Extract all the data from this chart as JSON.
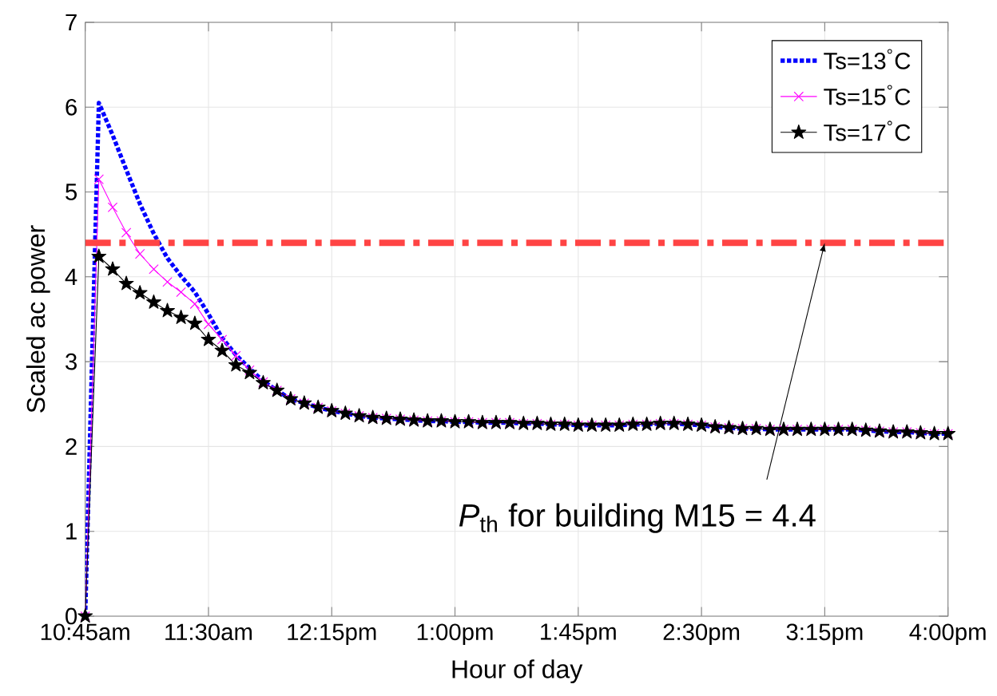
{
  "chart_data": {
    "type": "line",
    "xlabel": "Hour of day",
    "ylabel": "Scaled ac power",
    "x": [
      10.75,
      10.833,
      10.917,
      11.0,
      11.083,
      11.167,
      11.25,
      11.333,
      11.417,
      11.5,
      11.583,
      11.667,
      11.75,
      11.833,
      11.917,
      12.0,
      12.083,
      12.167,
      12.25,
      12.333,
      12.417,
      12.5,
      12.583,
      12.667,
      12.75,
      12.833,
      12.917,
      13.0,
      13.083,
      13.167,
      13.25,
      13.333,
      13.417,
      13.5,
      13.583,
      13.667,
      13.75,
      13.833,
      13.917,
      14.0,
      14.083,
      14.167,
      14.25,
      14.333,
      14.417,
      14.5,
      14.583,
      14.667,
      14.75,
      14.833,
      14.917,
      15.0,
      15.083,
      15.167,
      15.25,
      15.333,
      15.417,
      15.5,
      15.583,
      15.667,
      15.75,
      15.833,
      15.917,
      16.0
    ],
    "series": [
      {
        "name": "Ts=13$^{°}$C",
        "color": "#0000ff",
        "marker": "none",
        "line_style": "dotted",
        "values": [
          0,
          6.05,
          5.67,
          5.26,
          4.86,
          4.51,
          4.22,
          4.01,
          3.82,
          3.56,
          3.28,
          3.08,
          2.92,
          2.77,
          2.66,
          2.56,
          2.51,
          2.46,
          2.42,
          2.39,
          2.36,
          2.34,
          2.33,
          2.32,
          2.31,
          2.3,
          2.3,
          2.29,
          2.29,
          2.28,
          2.28,
          2.28,
          2.27,
          2.27,
          2.26,
          2.26,
          2.25,
          2.25,
          2.25,
          2.25,
          2.26,
          2.26,
          2.27,
          2.27,
          2.26,
          2.25,
          2.23,
          2.22,
          2.21,
          2.21,
          2.2,
          2.2,
          2.2,
          2.2,
          2.2,
          2.2,
          2.2,
          2.19,
          2.18,
          2.17,
          2.17,
          2.16,
          2.15,
          2.15
        ]
      },
      {
        "name": "Ts=15$^{°}$C",
        "color": "#ff00ff",
        "marker": "cross",
        "line_style": "solid",
        "values": [
          0,
          5.15,
          4.82,
          4.52,
          4.27,
          4.09,
          3.94,
          3.82,
          3.68,
          3.44,
          3.26,
          3.07,
          2.9,
          2.76,
          2.66,
          2.56,
          2.51,
          2.46,
          2.42,
          2.39,
          2.36,
          2.34,
          2.33,
          2.32,
          2.31,
          2.3,
          2.3,
          2.29,
          2.29,
          2.28,
          2.28,
          2.28,
          2.27,
          2.27,
          2.26,
          2.26,
          2.25,
          2.25,
          2.25,
          2.25,
          2.26,
          2.26,
          2.27,
          2.27,
          2.26,
          2.25,
          2.23,
          2.22,
          2.21,
          2.21,
          2.2,
          2.2,
          2.2,
          2.2,
          2.2,
          2.2,
          2.2,
          2.19,
          2.18,
          2.17,
          2.17,
          2.16,
          2.15,
          2.15
        ]
      },
      {
        "name": "Ts=17$^{°}$C",
        "color": "#000000",
        "marker": "star",
        "line_style": "solid",
        "values": [
          0,
          4.24,
          4.09,
          3.92,
          3.81,
          3.7,
          3.6,
          3.52,
          3.45,
          3.26,
          3.13,
          2.96,
          2.87,
          2.75,
          2.66,
          2.56,
          2.51,
          2.46,
          2.42,
          2.39,
          2.36,
          2.34,
          2.33,
          2.32,
          2.31,
          2.3,
          2.3,
          2.29,
          2.29,
          2.28,
          2.28,
          2.28,
          2.27,
          2.27,
          2.26,
          2.26,
          2.25,
          2.25,
          2.25,
          2.25,
          2.26,
          2.26,
          2.27,
          2.27,
          2.26,
          2.25,
          2.23,
          2.22,
          2.21,
          2.21,
          2.2,
          2.2,
          2.2,
          2.2,
          2.2,
          2.2,
          2.2,
          2.19,
          2.18,
          2.17,
          2.17,
          2.16,
          2.15,
          2.15
        ]
      }
    ],
    "xlim": [
      10.75,
      16
    ],
    "xticks": [
      {
        "value": 10.75,
        "label": "10:45am"
      },
      {
        "value": 11.5,
        "label": "11:30am"
      },
      {
        "value": 12.25,
        "label": "12:15pm"
      },
      {
        "value": 13.0,
        "label": "1:00pm"
      },
      {
        "value": 13.75,
        "label": "1:45pm"
      },
      {
        "value": 14.5,
        "label": "2:30pm"
      },
      {
        "value": 15.25,
        "label": "3:15pm"
      },
      {
        "value": 16.0,
        "label": "4:00pm"
      }
    ],
    "ylim": [
      0,
      7
    ],
    "yticks": [
      0,
      1,
      2,
      3,
      4,
      5,
      6,
      7
    ],
    "ref_lines": [
      {
        "axis": "y",
        "value": 4.4,
        "color": "#ff4444",
        "line_style": "dashdot"
      }
    ],
    "annotations": [
      {
        "text": "*P*$_{th}$ for building M15 = 4.4",
        "x": 15.25,
        "y": 4.4
      }
    ],
    "grid": true,
    "legend": "top right"
  }
}
